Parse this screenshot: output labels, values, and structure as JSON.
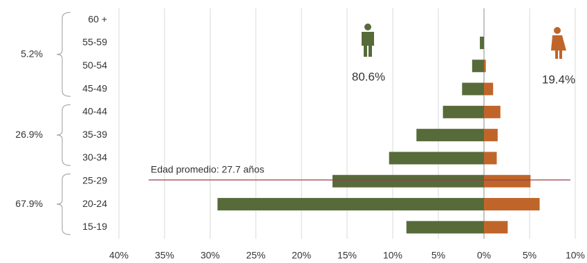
{
  "chart_data": {
    "type": "bar",
    "orientation": "horizontal",
    "categories": [
      "60 +",
      "55-59",
      "50-54",
      "45-49",
      "40-44",
      "35-39",
      "30-34",
      "25-29",
      "20-24",
      "15-19"
    ],
    "series": [
      {
        "color": "#576b3a",
        "values": [
          0,
          -0.45,
          -1.3,
          -2.4,
          -4.5,
          -7.4,
          -10.4,
          -16.6,
          -29.2,
          -8.5
        ],
        "total": {
          "value": 80.6,
          "label": "80.6%"
        }
      },
      {
        "color": "#c0652a",
        "values": [
          0,
          0,
          0.2,
          1.0,
          1.8,
          1.5,
          1.4,
          5.1,
          6.1,
          2.6
        ],
        "total": {
          "value": 19.4,
          "label": "19.4%"
        }
      }
    ],
    "xlim": [
      -40,
      10
    ],
    "xticks": [
      {
        "value": -40,
        "label": "40%"
      },
      {
        "value": -35,
        "label": "35%"
      },
      {
        "value": -30,
        "label": "30%"
      },
      {
        "value": -25,
        "label": "25%"
      },
      {
        "value": -20,
        "label": "20%"
      },
      {
        "value": -15,
        "label": "15%"
      },
      {
        "value": -10,
        "label": "10%"
      },
      {
        "value": -5,
        "label": "5%"
      },
      {
        "value": 0,
        "label": "0%"
      },
      {
        "value": 5,
        "label": "5%"
      },
      {
        "value": 10,
        "label": "10%"
      }
    ],
    "grid": true,
    "groups": [
      {
        "value": 5.2,
        "label": "5.2%"
      },
      {
        "value": 26.9,
        "label": "26.9%"
      },
      {
        "value": 67.9,
        "label": "67.9%"
      }
    ],
    "annotation": "Edad promedio: 27.7 años",
    "annotation_color": "#9b3b4a"
  }
}
